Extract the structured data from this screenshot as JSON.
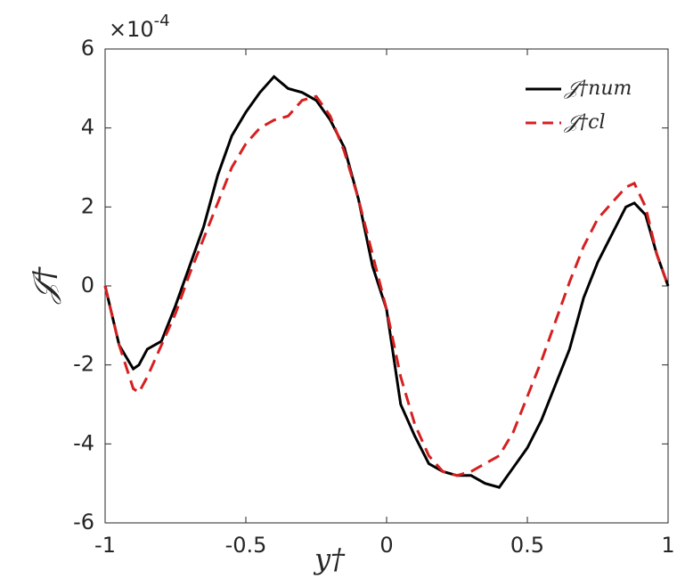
{
  "chart_data": {
    "type": "line",
    "xlabel": "y†",
    "ylabel": "𝒥†",
    "y_multiplier": {
      "base": "×10",
      "exponent": "-4"
    },
    "x": [
      -1,
      -0.95,
      -0.9,
      -0.88,
      -0.85,
      -0.8,
      -0.75,
      -0.7,
      -0.65,
      -0.6,
      -0.55,
      -0.5,
      -0.45,
      -0.4,
      -0.35,
      -0.3,
      -0.25,
      -0.2,
      -0.15,
      -0.1,
      -0.05,
      0,
      0.05,
      0.1,
      0.15,
      0.2,
      0.25,
      0.3,
      0.35,
      0.4,
      0.45,
      0.5,
      0.55,
      0.6,
      0.65,
      0.7,
      0.75,
      0.8,
      0.85,
      0.88,
      0.92,
      0.96,
      1
    ],
    "series": [
      {
        "name": "𝒥†num",
        "color": "#000000",
        "dash": "solid",
        "values": [
          0,
          -1.5,
          -2.1,
          -2.0,
          -1.6,
          -1.4,
          -0.5,
          0.5,
          1.5,
          2.8,
          3.8,
          4.4,
          4.9,
          5.3,
          5.0,
          4.9,
          4.7,
          4.2,
          3.5,
          2.2,
          0.5,
          -0.6,
          -3,
          -3.8,
          -4.5,
          -4.7,
          -4.8,
          -4.8,
          -5.0,
          -5.1,
          -4.6,
          -4.1,
          -3.4,
          -2.5,
          -1.6,
          -0.3,
          0.6,
          1.3,
          2.0,
          2.1,
          1.8,
          0.8,
          0
        ]
      },
      {
        "name": "𝒥†cl",
        "color": "#d62020",
        "dash": "dashed",
        "values": [
          0,
          -1.5,
          -2.6,
          -2.7,
          -2.3,
          -1.5,
          -0.7,
          0.3,
          1.2,
          2.1,
          3.0,
          3.6,
          4.0,
          4.2,
          4.3,
          4.7,
          4.8,
          4.3,
          3.4,
          2.2,
          0.8,
          -0.6,
          -2.3,
          -3.5,
          -4.3,
          -4.7,
          -4.8,
          -4.7,
          -4.5,
          -4.3,
          -3.7,
          -2.8,
          -1.9,
          -0.9,
          0.1,
          1.0,
          1.7,
          2.1,
          2.5,
          2.6,
          2.0,
          0.8,
          0
        ]
      }
    ],
    "xlim": [
      -1,
      1
    ],
    "xticks": [
      -1,
      -0.5,
      0,
      0.5,
      1
    ],
    "ylim": [
      -6,
      6
    ],
    "yticks": [
      -6,
      -4,
      -2,
      0,
      2,
      4,
      6
    ],
    "grid": false,
    "legend": "upper right"
  }
}
